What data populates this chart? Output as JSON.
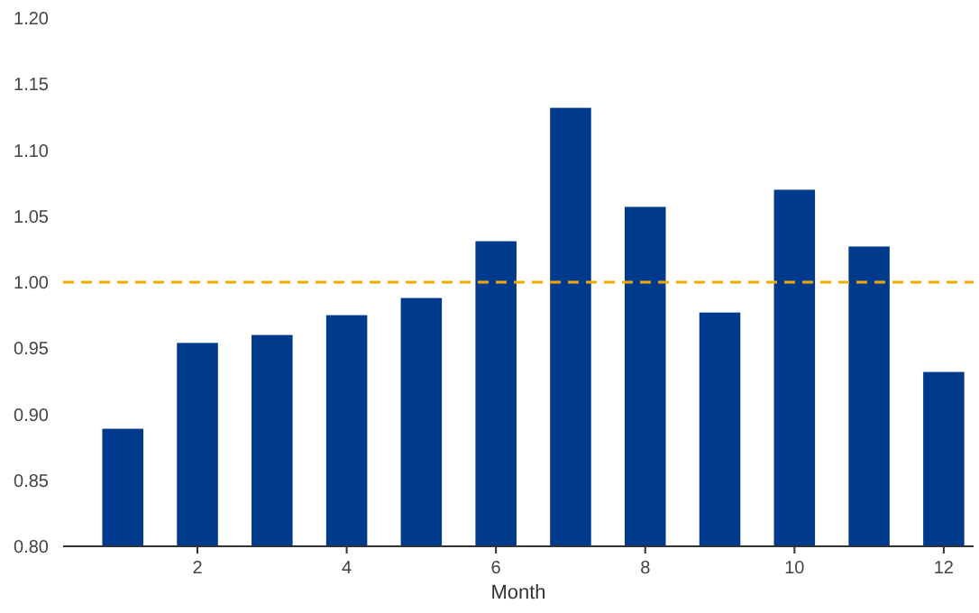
{
  "chart_data": {
    "type": "bar",
    "xlabel": "Month",
    "x": [
      1,
      2,
      3,
      4,
      5,
      6,
      7,
      8,
      9,
      10,
      11,
      12
    ],
    "values": [
      0.889,
      0.954,
      0.96,
      0.975,
      0.988,
      1.031,
      1.132,
      1.057,
      0.977,
      1.07,
      1.027,
      0.932
    ],
    "color": "#003a8c",
    "xlim": [
      0.2,
      12.4
    ],
    "xticks": [
      2,
      4,
      6,
      8,
      10,
      12
    ],
    "ylim": [
      0.8,
      1.2
    ],
    "yticks": [
      {
        "value": 0.8,
        "label": "0.80"
      },
      {
        "value": 0.85,
        "label": "0.85"
      },
      {
        "value": 0.9,
        "label": "0.90"
      },
      {
        "value": 0.95,
        "label": "0.95"
      },
      {
        "value": 1.0,
        "label": "1.00"
      },
      {
        "value": 1.05,
        "label": "1.05"
      },
      {
        "value": 1.1,
        "label": "1.10"
      },
      {
        "value": 1.15,
        "label": "1.15"
      },
      {
        "value": 1.2,
        "label": "1.20"
      }
    ],
    "ref_lines": [
      {
        "axis": "y",
        "value": 1.0,
        "color": "#f2a900",
        "line_style": "dashed"
      }
    ]
  }
}
